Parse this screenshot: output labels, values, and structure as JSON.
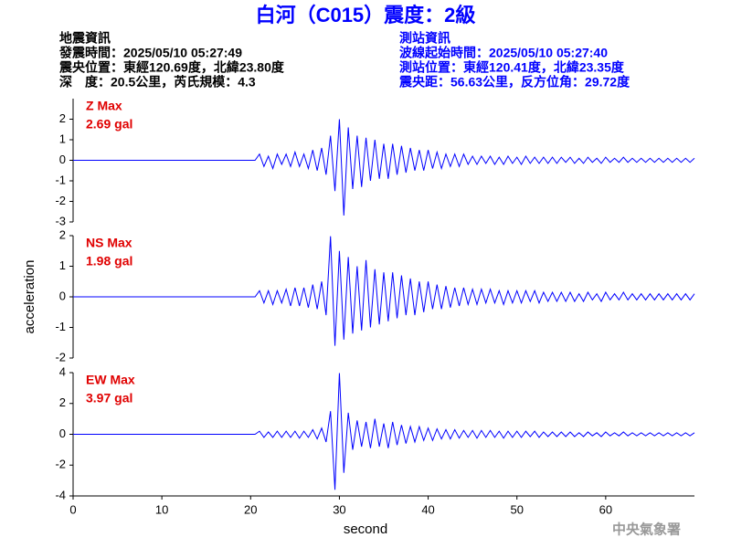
{
  "header": {
    "title": "白河（C015）震度：2級",
    "left": [
      "地震資訊",
      "發震時間：2025/05/10 05:27:49",
      "震央位置：東經120.69度，北緯23.80度",
      "深　度：20.5公里，芮氏規模：4.3"
    ],
    "right": [
      "測站資訊",
      "波線起始時間：2025/05/10 05:27:40",
      "測站位置：東經120.41度，北緯23.35度",
      "震央距：56.63公里，反方位角：29.72度"
    ]
  },
  "footer": "中央氣象署",
  "chart_data": [
    {
      "type": "line",
      "label": "Z Max",
      "max": {
        "value": 2.69,
        "label": "2.69 gal"
      },
      "xlim": [
        0,
        70
      ],
      "ylim": [
        -3,
        3
      ],
      "yticks": [
        -3,
        -2,
        -1,
        0,
        1,
        2
      ],
      "x": [
        0,
        0.5,
        1,
        1.5,
        2,
        2.5,
        3,
        3.5,
        4,
        4.5,
        5,
        5.5,
        6,
        6.5,
        7,
        7.5,
        8,
        8.5,
        9,
        9.5,
        10,
        10.5,
        11,
        11.5,
        12,
        12.5,
        13,
        13.5,
        14,
        14.5,
        15,
        15.5,
        16,
        16.5,
        17,
        17.5,
        18,
        18.5,
        19,
        19.5,
        20,
        20.5,
        21,
        21.5,
        22,
        22.5,
        23,
        23.5,
        24,
        24.5,
        25,
        25.5,
        26,
        26.5,
        27,
        27.5,
        28,
        28.5,
        29,
        29.5,
        30,
        30.5,
        31,
        31.5,
        32,
        32.5,
        33,
        33.5,
        34,
        34.5,
        35,
        35.5,
        36,
        36.5,
        37,
        37.5,
        38,
        38.5,
        39,
        39.5,
        40,
        40.5,
        41,
        41.5,
        42,
        42.5,
        43,
        43.5,
        44,
        44.5,
        45,
        45.5,
        46,
        46.5,
        47,
        47.5,
        48,
        48.5,
        49,
        49.5,
        50,
        50.5,
        51,
        51.5,
        52,
        52.5,
        53,
        53.5,
        54,
        54.5,
        55,
        55.5,
        56,
        56.5,
        57,
        57.5,
        58,
        58.5,
        59,
        59.5,
        60,
        60.5,
        61,
        61.5,
        62,
        62.5,
        63,
        63.5,
        64,
        64.5,
        65,
        65.5,
        66,
        66.5,
        67,
        67.5,
        68,
        68.5,
        69,
        69.5,
        70
      ],
      "series": [
        {
          "color": "#0000ff",
          "values": [
            0,
            0,
            0,
            0,
            0,
            0,
            0,
            0,
            0,
            0,
            0,
            0,
            0,
            0,
            0,
            0,
            0,
            0,
            0,
            0,
            0,
            0,
            0,
            0,
            0,
            0,
            0,
            0,
            0,
            0,
            0,
            0,
            0,
            0,
            0,
            0,
            0,
            0,
            0,
            0,
            0,
            0,
            0.3,
            -0.3,
            0.2,
            -0.4,
            0.3,
            -0.2,
            0.3,
            -0.3,
            0.4,
            -0.3,
            0.3,
            -0.4,
            0.5,
            -0.5,
            0.6,
            -0.7,
            1.2,
            -1.5,
            2.0,
            -2.69,
            1.6,
            -1.4,
            1.2,
            -1.3,
            1.1,
            -1.0,
            1.0,
            -0.9,
            0.8,
            -0.9,
            0.8,
            -0.7,
            0.7,
            -0.6,
            0.6,
            -0.5,
            0.5,
            -0.5,
            0.5,
            -0.4,
            0.4,
            -0.4,
            0.3,
            -0.3,
            0.3,
            -0.3,
            0.3,
            -0.2,
            0.2,
            -0.2,
            0.2,
            -0.15,
            0.2,
            -0.2,
            0.15,
            -0.2,
            0.2,
            -0.15,
            0.15,
            -0.2,
            0.2,
            -0.15,
            0.15,
            -0.15,
            0.15,
            -0.15,
            0.15,
            -0.15,
            0.15,
            -0.1,
            0.15,
            -0.15,
            0.1,
            -0.15,
            0.15,
            -0.1,
            0.1,
            -0.15,
            0.15,
            -0.1,
            0.1,
            -0.1,
            0.15,
            -0.1,
            0.1,
            -0.1,
            0.1,
            -0.1,
            0.1,
            -0.1,
            0.1,
            -0.1,
            0.1,
            -0.1,
            0.1,
            -0.1,
            0.1,
            -0.1,
            0.1
          ]
        }
      ]
    },
    {
      "type": "line",
      "label": "NS Max",
      "max": {
        "value": 1.98,
        "label": "1.98 gal"
      },
      "ylabel": "acceleration",
      "xlim": [
        0,
        70
      ],
      "ylim": [
        -2,
        2
      ],
      "yticks": [
        -2,
        -1,
        0,
        1,
        2
      ],
      "x": [
        0,
        0.5,
        1,
        1.5,
        2,
        2.5,
        3,
        3.5,
        4,
        4.5,
        5,
        5.5,
        6,
        6.5,
        7,
        7.5,
        8,
        8.5,
        9,
        9.5,
        10,
        10.5,
        11,
        11.5,
        12,
        12.5,
        13,
        13.5,
        14,
        14.5,
        15,
        15.5,
        16,
        16.5,
        17,
        17.5,
        18,
        18.5,
        19,
        19.5,
        20,
        20.5,
        21,
        21.5,
        22,
        22.5,
        23,
        23.5,
        24,
        24.5,
        25,
        25.5,
        26,
        26.5,
        27,
        27.5,
        28,
        28.5,
        29,
        29.5,
        30,
        30.5,
        31,
        31.5,
        32,
        32.5,
        33,
        33.5,
        34,
        34.5,
        35,
        35.5,
        36,
        36.5,
        37,
        37.5,
        38,
        38.5,
        39,
        39.5,
        40,
        40.5,
        41,
        41.5,
        42,
        42.5,
        43,
        43.5,
        44,
        44.5,
        45,
        45.5,
        46,
        46.5,
        47,
        47.5,
        48,
        48.5,
        49,
        49.5,
        50,
        50.5,
        51,
        51.5,
        52,
        52.5,
        53,
        53.5,
        54,
        54.5,
        55,
        55.5,
        56,
        56.5,
        57,
        57.5,
        58,
        58.5,
        59,
        59.5,
        60,
        60.5,
        61,
        61.5,
        62,
        62.5,
        63,
        63.5,
        64,
        64.5,
        65,
        65.5,
        66,
        66.5,
        67,
        67.5,
        68,
        68.5,
        69,
        69.5,
        70
      ],
      "series": [
        {
          "color": "#0000ff",
          "values": [
            0,
            0,
            0,
            0,
            0,
            0,
            0,
            0,
            0,
            0,
            0,
            0,
            0,
            0,
            0,
            0,
            0,
            0,
            0,
            0,
            0,
            0,
            0,
            0,
            0,
            0,
            0,
            0,
            0,
            0,
            0,
            0,
            0,
            0,
            0,
            0,
            0,
            0,
            0,
            0,
            0,
            0,
            0.2,
            -0.2,
            0.2,
            -0.25,
            0.2,
            -0.2,
            0.25,
            -0.3,
            0.3,
            -0.3,
            0.3,
            -0.35,
            0.4,
            -0.4,
            0.5,
            -0.6,
            1.98,
            -1.6,
            1.5,
            -1.4,
            1.3,
            -1.2,
            1.0,
            -1.1,
            1.2,
            -1.0,
            0.9,
            -0.9,
            0.8,
            -0.8,
            0.8,
            -0.7,
            0.7,
            -0.6,
            0.6,
            -0.6,
            0.5,
            -0.5,
            0.5,
            -0.4,
            0.4,
            -0.4,
            0.35,
            -0.35,
            0.3,
            -0.3,
            0.3,
            -0.25,
            0.25,
            -0.25,
            0.25,
            -0.2,
            0.25,
            -0.2,
            0.2,
            -0.25,
            0.2,
            -0.2,
            0.2,
            -0.2,
            0.2,
            -0.15,
            0.2,
            -0.2,
            0.15,
            -0.15,
            0.15,
            -0.15,
            0.15,
            -0.15,
            0.15,
            -0.15,
            0.1,
            -0.15,
            0.15,
            -0.1,
            0.1,
            -0.15,
            0.15,
            -0.1,
            0.1,
            -0.1,
            0.15,
            -0.1,
            0.1,
            -0.1,
            0.1,
            -0.1,
            0.1,
            -0.1,
            0.1,
            -0.1,
            0.1,
            -0.1,
            0.1,
            -0.1,
            0.1,
            -0.1,
            0.1
          ]
        }
      ]
    },
    {
      "type": "line",
      "label": "EW Max",
      "max": {
        "value": 3.97,
        "label": "3.97 gal"
      },
      "xlabel": "second",
      "xlim": [
        0,
        70
      ],
      "xticks": [
        0,
        10,
        20,
        30,
        40,
        50,
        60
      ],
      "ylim": [
        -4,
        4
      ],
      "yticks": [
        -4,
        -2,
        0,
        2,
        4
      ],
      "x": [
        0,
        0.5,
        1,
        1.5,
        2,
        2.5,
        3,
        3.5,
        4,
        4.5,
        5,
        5.5,
        6,
        6.5,
        7,
        7.5,
        8,
        8.5,
        9,
        9.5,
        10,
        10.5,
        11,
        11.5,
        12,
        12.5,
        13,
        13.5,
        14,
        14.5,
        15,
        15.5,
        16,
        16.5,
        17,
        17.5,
        18,
        18.5,
        19,
        19.5,
        20,
        20.5,
        21,
        21.5,
        22,
        22.5,
        23,
        23.5,
        24,
        24.5,
        25,
        25.5,
        26,
        26.5,
        27,
        27.5,
        28,
        28.5,
        29,
        29.5,
        30,
        30.5,
        31,
        31.5,
        32,
        32.5,
        33,
        33.5,
        34,
        34.5,
        35,
        35.5,
        36,
        36.5,
        37,
        37.5,
        38,
        38.5,
        39,
        39.5,
        40,
        40.5,
        41,
        41.5,
        42,
        42.5,
        43,
        43.5,
        44,
        44.5,
        45,
        45.5,
        46,
        46.5,
        47,
        47.5,
        48,
        48.5,
        49,
        49.5,
        50,
        50.5,
        51,
        51.5,
        52,
        52.5,
        53,
        53.5,
        54,
        54.5,
        55,
        55.5,
        56,
        56.5,
        57,
        57.5,
        58,
        58.5,
        59,
        59.5,
        60,
        60.5,
        61,
        61.5,
        62,
        62.5,
        63,
        63.5,
        64,
        64.5,
        65,
        65.5,
        66,
        66.5,
        67,
        67.5,
        68,
        68.5,
        69,
        69.5,
        70
      ],
      "series": [
        {
          "color": "#0000ff",
          "values": [
            0,
            0,
            0,
            0,
            0,
            0,
            0,
            0,
            0,
            0,
            0,
            0,
            0,
            0,
            0,
            0,
            0,
            0,
            0,
            0,
            0,
            0,
            0,
            0,
            0,
            0,
            0,
            0,
            0,
            0,
            0,
            0,
            0,
            0,
            0,
            0,
            0,
            0,
            0,
            0,
            0,
            0,
            0.2,
            -0.2,
            0.15,
            -0.2,
            0.2,
            -0.2,
            0.2,
            -0.2,
            0.2,
            -0.25,
            0.2,
            -0.2,
            0.3,
            -0.3,
            0.4,
            -0.5,
            1.5,
            -3.6,
            3.97,
            -2.5,
            1.4,
            -1.0,
            0.9,
            -0.8,
            0.8,
            -0.9,
            1.0,
            -0.8,
            0.7,
            -0.9,
            0.8,
            -0.7,
            0.6,
            -0.6,
            0.5,
            -0.5,
            0.5,
            -0.4,
            0.4,
            -0.4,
            0.35,
            -0.3,
            0.3,
            -0.3,
            0.3,
            -0.25,
            0.25,
            -0.2,
            0.25,
            -0.25,
            0.25,
            -0.2,
            0.25,
            -0.2,
            0.2,
            -0.25,
            0.2,
            -0.2,
            0.2,
            -0.2,
            0.2,
            -0.15,
            0.2,
            -0.2,
            0.15,
            -0.15,
            0.15,
            -0.15,
            0.15,
            -0.15,
            0.15,
            -0.15,
            0.1,
            -0.15,
            0.15,
            -0.1,
            0.1,
            -0.15,
            0.15,
            -0.1,
            0.1,
            -0.1,
            0.15,
            -0.1,
            0.1,
            -0.1,
            0.1,
            -0.1,
            0.1,
            -0.1,
            0.1,
            -0.1,
            0.1,
            -0.1,
            0.1,
            -0.1,
            0.1,
            -0.1,
            0.1
          ]
        }
      ]
    }
  ]
}
